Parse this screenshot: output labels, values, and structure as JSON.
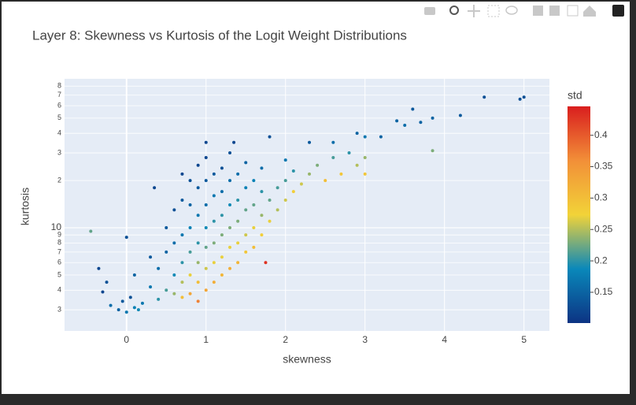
{
  "chart_data": {
    "type": "scatter",
    "title": "Layer 8: Skewness vs Kurtosis of the Logit Weight Distributions",
    "x_label": "skewness",
    "y_label": "kurtosis",
    "colorbar_title": "std",
    "log_y": true,
    "grid": true,
    "xlim": [
      -0.78,
      5.32
    ],
    "ylim": [
      2.2,
      89
    ],
    "xticks": [
      0,
      1,
      2,
      3,
      4,
      5
    ],
    "yticks": [
      3,
      4,
      5,
      6,
      7,
      8,
      9,
      10,
      {
        "value": 20,
        "label": "2"
      },
      {
        "value": 30,
        "label": "3"
      },
      {
        "value": 40,
        "label": "4"
      },
      {
        "value": 50,
        "label": "5"
      },
      {
        "value": 60,
        "label": "6"
      },
      {
        "value": 70,
        "label": "7"
      },
      {
        "value": 80,
        "label": "8"
      }
    ],
    "clim": [
      0.101,
      0.446
    ],
    "cticks": [
      0.15,
      0.2,
      0.25,
      0.3,
      0.35,
      0.4
    ],
    "colorscale": [
      [
        0,
        "#0c3383"
      ],
      [
        0.25,
        "#0a88ba"
      ],
      [
        0.5,
        "#f2d338"
      ],
      [
        0.75,
        "#f28f38"
      ],
      [
        1,
        "#d91e1e"
      ]
    ],
    "x": [
      -0.45,
      -0.2,
      -0.1,
      0,
      0.1,
      0.2,
      -0.05,
      0.05,
      0.15,
      -0.3,
      -0.35,
      -0.25,
      0,
      0.1,
      0.3,
      0.3,
      0.4,
      0.4,
      0.5,
      0.5,
      0.5,
      0.6,
      0.6,
      0.6,
      0.6,
      0.7,
      0.7,
      0.7,
      0.7,
      0.7,
      0.7,
      0.8,
      0.8,
      0.8,
      0.8,
      0.8,
      0.8,
      0.9,
      0.9,
      0.9,
      0.9,
      0.9,
      0.9,
      0.9,
      1.0,
      1.0,
      1.0,
      1.0,
      1.0,
      1.0,
      1.0,
      1.1,
      1.1,
      1.1,
      1.1,
      1.1,
      1.1,
      1.2,
      1.2,
      1.2,
      1.2,
      1.2,
      1.2,
      1.3,
      1.3,
      1.3,
      1.3,
      1.3,
      1.3,
      1.4,
      1.4,
      1.4,
      1.4,
      1.4,
      1.5,
      1.5,
      1.5,
      1.5,
      1.5,
      1.6,
      1.6,
      1.6,
      1.6,
      1.7,
      1.7,
      1.7,
      1.7,
      1.75,
      1.8,
      1.8,
      1.8,
      1.9,
      1.9,
      2.0,
      2.0,
      2.0,
      2.1,
      2.1,
      2.2,
      2.3,
      2.3,
      2.4,
      2.5,
      2.6,
      2.6,
      2.7,
      2.8,
      2.9,
      2.9,
      3.0,
      3.0,
      3.0,
      3.2,
      3.4,
      3.5,
      3.6,
      3.7,
      3.85,
      3.85,
      4.2,
      4.5,
      4.95,
      5.0,
      0.35,
      1.0,
      1.35
    ],
    "y": [
      9.5,
      3.2,
      3.0,
      2.9,
      3.1,
      3.3,
      3.4,
      3.6,
      3.0,
      3.9,
      5.5,
      4.5,
      8.7,
      5,
      4.2,
      6.5,
      3.5,
      5.5,
      4,
      7,
      10,
      3.8,
      5,
      8,
      13,
      3.6,
      4.5,
      6,
      9,
      15,
      22,
      3.8,
      5,
      7,
      10,
      14,
      20,
      3.4,
      4.5,
      6,
      8,
      12,
      18,
      25,
      4,
      5.5,
      7.5,
      10,
      14,
      20,
      28,
      4.5,
      6,
      8,
      11,
      16,
      22,
      5,
      6.5,
      9,
      12,
      17,
      24,
      5.5,
      7.5,
      10,
      14,
      20,
      30,
      6,
      8,
      11,
      15,
      22,
      7,
      9,
      13,
      18,
      26,
      7.5,
      10,
      14,
      20,
      9,
      12,
      17,
      24,
      6,
      11,
      15,
      38,
      13,
      18,
      15,
      20,
      27,
      17,
      23,
      19,
      22,
      35,
      25,
      20,
      28,
      35,
      22,
      30,
      25,
      40,
      22,
      28,
      38,
      38,
      48,
      45,
      57,
      47,
      50,
      31,
      52,
      68,
      66,
      68,
      18,
      35,
      35
    ],
    "color_values": [
      0.22,
      0.16,
      0.15,
      0.17,
      0.18,
      0.17,
      0.14,
      0.13,
      0.19,
      0.12,
      0.12,
      0.13,
      0.13,
      0.15,
      0.17,
      0.14,
      0.2,
      0.16,
      0.21,
      0.15,
      0.14,
      0.24,
      0.19,
      0.16,
      0.13,
      0.3,
      0.25,
      0.2,
      0.17,
      0.14,
      0.12,
      0.33,
      0.27,
      0.21,
      0.18,
      0.15,
      0.13,
      0.37,
      0.3,
      0.24,
      0.2,
      0.17,
      0.14,
      0.12,
      0.33,
      0.26,
      0.22,
      0.19,
      0.16,
      0.14,
      0.12,
      0.32,
      0.27,
      0.23,
      0.2,
      0.17,
      0.14,
      0.31,
      0.27,
      0.23,
      0.2,
      0.16,
      0.13,
      0.32,
      0.27,
      0.23,
      0.19,
      0.16,
      0.13,
      0.31,
      0.27,
      0.23,
      0.2,
      0.16,
      0.29,
      0.26,
      0.22,
      0.18,
      0.15,
      0.3,
      0.27,
      0.22,
      0.18,
      0.28,
      0.24,
      0.2,
      0.16,
      0.43,
      0.27,
      0.22,
      0.13,
      0.25,
      0.21,
      0.26,
      0.21,
      0.17,
      0.28,
      0.2,
      0.26,
      0.24,
      0.14,
      0.23,
      0.3,
      0.21,
      0.16,
      0.29,
      0.2,
      0.25,
      0.15,
      0.29,
      0.24,
      0.17,
      0.15,
      0.15,
      0.16,
      0.14,
      0.15,
      0.15,
      0.23,
      0.14,
      0.13,
      0.13,
      0.13,
      0.12,
      0.12,
      0.12
    ]
  }
}
